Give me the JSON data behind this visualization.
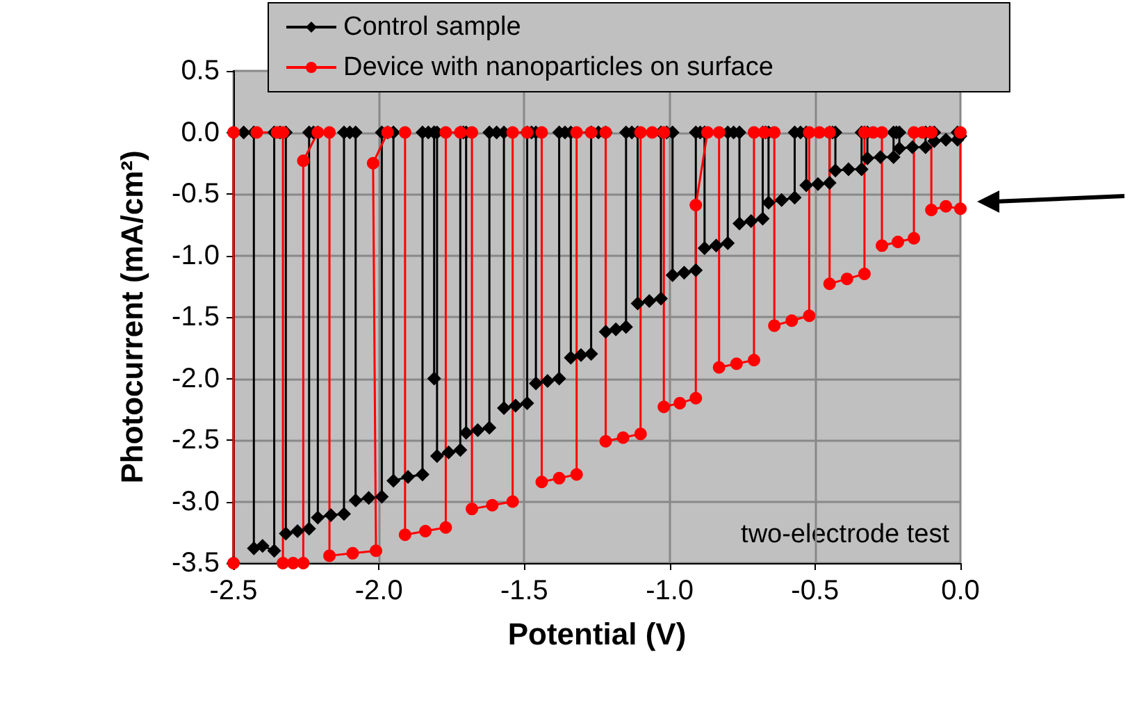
{
  "chart_data": {
    "type": "line",
    "xlabel": "Potential (V)",
    "ylabel": "Photocurrent (mA/cm²)",
    "xlim": [
      -2.5,
      0
    ],
    "ylim": [
      -3.5,
      0.5
    ],
    "xticks": [
      {
        "value": -2.5,
        "label": "-2.5"
      },
      {
        "value": -2,
        "label": "-2.0"
      },
      {
        "value": -1.5,
        "label": "-1.5"
      },
      {
        "value": -1,
        "label": "-1.0"
      },
      {
        "value": -0.5,
        "label": "-0.5"
      },
      {
        "value": 0,
        "label": "0.0"
      }
    ],
    "yticks": [
      {
        "value": -3.5,
        "label": "-3.5"
      },
      {
        "value": -3,
        "label": "-3.0"
      },
      {
        "value": -2.5,
        "label": "-2.5"
      },
      {
        "value": -2,
        "label": "-2.0"
      },
      {
        "value": -1.5,
        "label": "-1.5"
      },
      {
        "value": -1,
        "label": "-1.0"
      },
      {
        "value": -0.5,
        "label": "-0.5"
      },
      {
        "value": 0,
        "label": "0.0"
      },
      {
        "value": 0.5,
        "label": "0.5"
      }
    ],
    "grid": true,
    "legend": "top",
    "line_style": "solid",
    "annotations": [
      "two-electrode test"
    ],
    "series": [
      {
        "name": "Control sample",
        "color": "#000000",
        "marker": "diamond",
        "x": [
          -2.5,
          -2.5,
          -2.465,
          -2.43,
          -2.43,
          -2.4,
          -2.36,
          -2.36,
          -2.34,
          -2.32,
          -2.32,
          -2.28,
          -2.24,
          -2.24,
          -2.225,
          -2.21,
          -2.21,
          -2.165,
          -2.12,
          -2.12,
          -2.1,
          -2.08,
          -2.08,
          -2.035,
          -1.99,
          -1.99,
          -1.97,
          -1.95,
          -1.95,
          -1.9,
          -1.85,
          -1.85,
          -1.83,
          -1.81,
          -1.81,
          -1.81,
          -1.8,
          -1.8,
          -1.76,
          -1.72,
          -1.72,
          -1.71,
          -1.7,
          -1.7,
          -1.66,
          -1.62,
          -1.62,
          -1.595,
          -1.57,
          -1.57,
          -1.53,
          -1.49,
          -1.49,
          -1.475,
          -1.46,
          -1.46,
          -1.42,
          -1.38,
          -1.38,
          -1.36,
          -1.34,
          -1.34,
          -1.305,
          -1.27,
          -1.27,
          -1.245,
          -1.22,
          -1.22,
          -1.185,
          -1.15,
          -1.15,
          -1.13,
          -1.11,
          -1.11,
          -1.07,
          -1.03,
          -1.03,
          -1.01,
          -0.99,
          -0.99,
          -0.95,
          -0.91,
          -0.91,
          -0.895,
          -0.88,
          -0.88,
          -0.84,
          -0.8,
          -0.8,
          -0.78,
          -0.76,
          -0.76,
          -0.72,
          -0.68,
          -0.68,
          -0.67,
          -0.66,
          -0.66,
          -0.615,
          -0.57,
          -0.57,
          -0.55,
          -0.53,
          -0.53,
          -0.49,
          -0.45,
          -0.45,
          -0.44,
          -0.43,
          -0.43,
          -0.385,
          -0.34,
          -0.34,
          -0.33,
          -0.32,
          -0.32,
          -0.275,
          -0.23,
          -0.23,
          -0.22,
          -0.21,
          -0.21,
          -0.165,
          -0.12,
          -0.12,
          -0.105,
          -0.09,
          -0.09,
          -0.05,
          -0.01,
          -0.01,
          0.0
        ],
        "values": [
          -3.5,
          0,
          0,
          0,
          -3.38,
          -3.36,
          -3.4,
          0,
          0,
          0,
          -3.26,
          -3.24,
          -3.22,
          0,
          0,
          0,
          -3.13,
          -3.11,
          -3.1,
          0,
          0,
          0,
          -2.99,
          -2.97,
          -2.96,
          0,
          0,
          0,
          -2.83,
          -2.8,
          -2.78,
          0,
          0,
          0,
          -2.0,
          0,
          0,
          -2.63,
          -2.6,
          -2.58,
          0,
          0,
          0,
          -2.44,
          -2.42,
          -2.4,
          0,
          0,
          0,
          -2.24,
          -2.22,
          -2.2,
          0,
          0,
          0,
          -2.04,
          -2.02,
          -2.0,
          0,
          0,
          0,
          -1.83,
          -1.81,
          -1.8,
          0,
          0,
          0,
          -1.62,
          -1.6,
          -1.58,
          0,
          0,
          0,
          -1.39,
          -1.37,
          -1.35,
          0,
          0,
          0,
          -1.16,
          -1.14,
          -1.12,
          0,
          0,
          0,
          -0.94,
          -0.92,
          -0.9,
          0,
          0,
          0,
          -0.74,
          -0.72,
          -0.7,
          0,
          0,
          0,
          -0.57,
          -0.55,
          -0.53,
          0,
          0,
          0,
          -0.43,
          -0.42,
          -0.41,
          0,
          0,
          0,
          -0.31,
          -0.3,
          -0.3,
          0,
          0,
          0,
          -0.21,
          -0.2,
          -0.2,
          0,
          0,
          0,
          -0.13,
          -0.12,
          -0.12,
          0,
          0,
          0,
          -0.07,
          -0.06,
          -0.06,
          0,
          -0.03
        ]
      },
      {
        "name": "Device with nanoparticles on surface",
        "color": "#ff0000",
        "marker": "circle",
        "x": [
          -2.5,
          -2.5,
          -2.42,
          -2.35,
          -2.33,
          -2.33,
          -2.295,
          -2.26,
          -2.26,
          -2.21,
          -2.17,
          -2.17,
          -2.09,
          -2.01,
          -2.02,
          -1.97,
          -1.91,
          -1.91,
          -1.84,
          -1.77,
          -1.77,
          -1.72,
          -1.68,
          -1.68,
          -1.61,
          -1.54,
          -1.54,
          -1.49,
          -1.44,
          -1.44,
          -1.38,
          -1.32,
          -1.32,
          -1.27,
          -1.22,
          -1.22,
          -1.16,
          -1.1,
          -1.1,
          -1.06,
          -1.02,
          -1.02,
          -0.965,
          -0.91,
          -0.91,
          -0.87,
          -0.83,
          -0.83,
          -0.77,
          -0.71,
          -0.71,
          -0.675,
          -0.64,
          -0.64,
          -0.58,
          -0.52,
          -0.52,
          -0.485,
          -0.45,
          -0.45,
          -0.39,
          -0.33,
          -0.33,
          -0.3,
          -0.27,
          -0.27,
          -0.215,
          -0.16,
          -0.16,
          -0.13,
          -0.1,
          -0.1,
          -0.05,
          0.0,
          0.0
        ],
        "values": [
          -3.5,
          0,
          0,
          0,
          0,
          -3.5,
          -3.5,
          -3.5,
          -0.23,
          0,
          0,
          -3.44,
          -3.42,
          -3.4,
          -0.25,
          0,
          0,
          -3.27,
          -3.24,
          -3.21,
          0,
          0,
          0,
          -3.06,
          -3.03,
          -3.0,
          0,
          0,
          0,
          -2.84,
          -2.81,
          -2.78,
          0,
          0,
          0,
          -2.51,
          -2.48,
          -2.45,
          0,
          0,
          0,
          -2.23,
          -2.2,
          -2.16,
          -0.59,
          0,
          0,
          -1.91,
          -1.88,
          -1.85,
          0,
          0,
          0,
          -1.57,
          -1.53,
          -1.49,
          0,
          0,
          0,
          -1.23,
          -1.19,
          -1.15,
          0,
          0,
          0,
          -0.92,
          -0.89,
          -0.86,
          0,
          0,
          0,
          -0.63,
          -0.6,
          -0.62,
          0
        ]
      }
    ]
  }
}
